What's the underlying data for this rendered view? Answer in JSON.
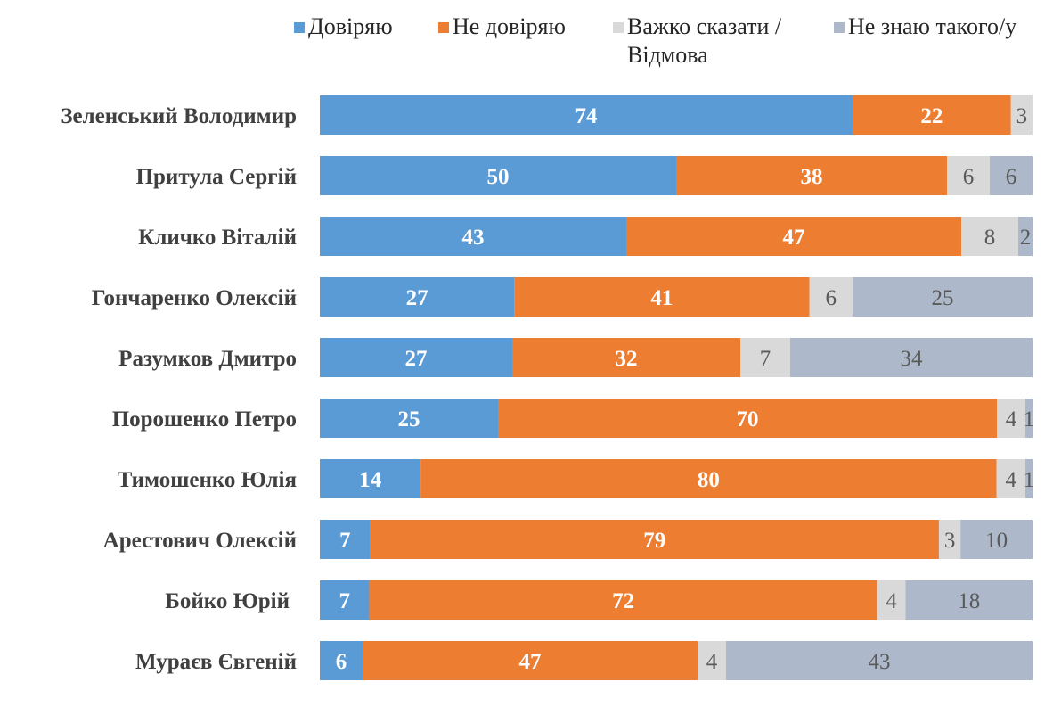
{
  "chart_data": {
    "type": "bar",
    "orientation": "horizontal",
    "stacked": true,
    "normalized": true,
    "title": "",
    "xlabel": "",
    "ylabel": "",
    "grid": false,
    "legend_position": "top",
    "categories": [
      "Зеленський Володимир",
      "Притула Сергій",
      "Кличко Віталій",
      "Гончаренко Олексій",
      "Разумков Дмитро",
      "Порошенко Петро",
      "Тимошенко Юлія",
      "Арестович Олексій",
      "Бойко Юрій",
      "Мураєв Євгеній"
    ],
    "series": [
      {
        "name": "Довіряю",
        "color": "#5b9bd5",
        "label_style": "bold-white",
        "values": [
          74,
          50,
          43,
          27,
          27,
          25,
          14,
          7,
          7,
          6
        ]
      },
      {
        "name": "Не довіряю",
        "color": "#ed7d31",
        "label_style": "bold-white",
        "values": [
          22,
          38,
          47,
          41,
          32,
          70,
          80,
          79,
          72,
          47
        ]
      },
      {
        "name": "Важко сказати /\nВідмова",
        "color": "#d9d9d9",
        "label_style": "plain-gray",
        "values": [
          3,
          6,
          8,
          6,
          7,
          4,
          4,
          3,
          4,
          4
        ]
      },
      {
        "name": "Не знаю такого/у",
        "color": "#adb9ca",
        "label_style": "plain-gray",
        "values": [
          0,
          6,
          2,
          25,
          34,
          1,
          1,
          10,
          18,
          43
        ]
      }
    ]
  }
}
